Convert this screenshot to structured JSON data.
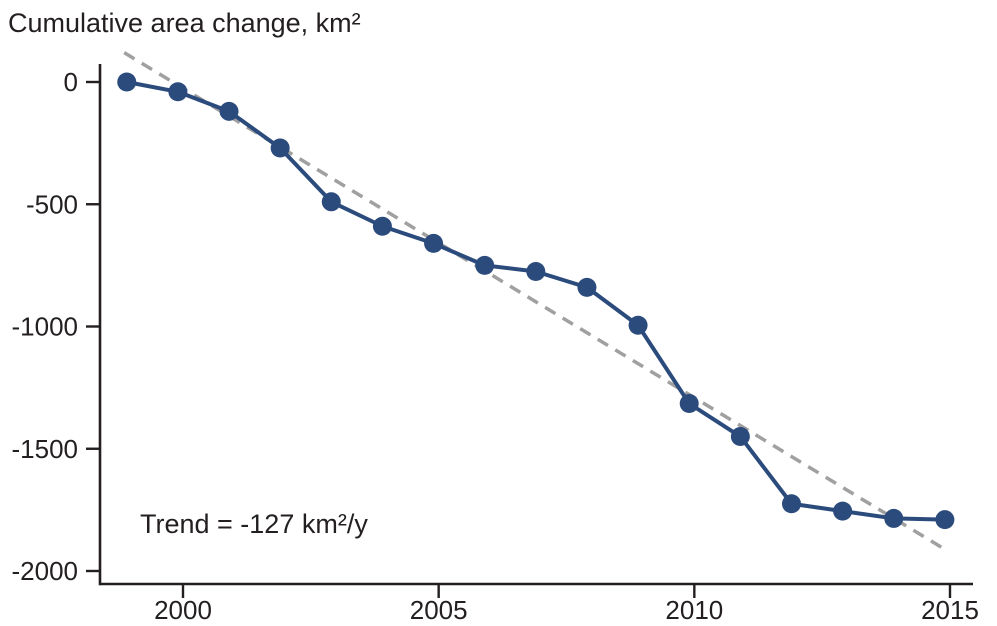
{
  "chart_data": {
    "type": "line",
    "title": "Cumulative area change, km²",
    "annotation": "Trend = -127 km²/y",
    "xlabel": "",
    "ylabel": "Cumulative area change, km²",
    "x": [
      1999,
      2000,
      2001,
      2002,
      2003,
      2004,
      2005,
      2006,
      2007,
      2008,
      2009,
      2010,
      2011,
      2012,
      2013,
      2014,
      2015
    ],
    "values": [
      0,
      -40,
      -120,
      -270,
      -490,
      -590,
      -660,
      -750,
      -775,
      -840,
      -995,
      -1315,
      -1450,
      -1725,
      -1755,
      -1785,
      -1790
    ],
    "trend_line": {
      "slope_km2_per_year": -127,
      "x": [
        1998.85,
        2014.85
      ],
      "y": [
        120,
        -1905
      ],
      "style": "dashed"
    },
    "xticks": [
      2000,
      2005,
      2010,
      2015
    ],
    "yticks": [
      0,
      -500,
      -1000,
      -1500,
      -2000
    ],
    "xlim": [
      1998.4,
      2015.45
    ],
    "ylim": [
      -2055,
      130
    ],
    "grid": false,
    "legend": "none",
    "marker": "circle",
    "colors": {
      "series": "#2b4b7c",
      "trend": "#a0a0a0",
      "axis": "#231f20",
      "text": "#231f20"
    },
    "x_points_offset_years": -0.1
  }
}
